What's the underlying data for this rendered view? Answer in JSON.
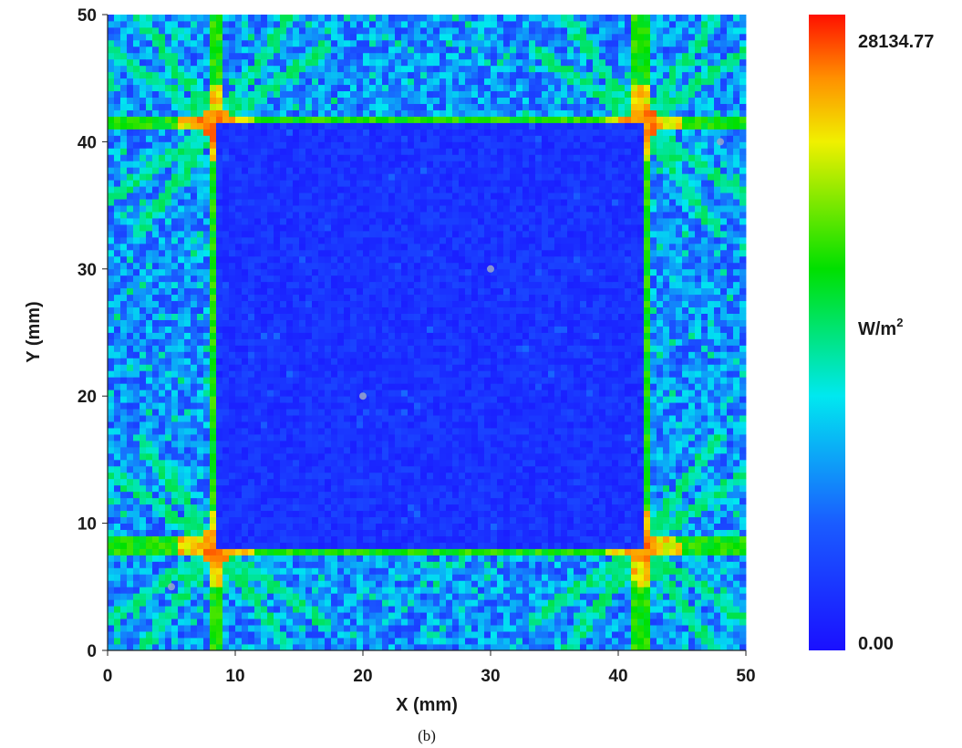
{
  "chart_data": {
    "type": "heatmap",
    "title": "",
    "xlabel": "X (mm)",
    "ylabel": "Y (mm)",
    "xlim": [
      0,
      50
    ],
    "ylim": [
      0,
      50
    ],
    "x_ticks": [
      "0",
      "10",
      "20",
      "30",
      "40",
      "50"
    ],
    "y_ticks": [
      "0",
      "10",
      "20",
      "30",
      "40",
      "50"
    ],
    "grid": 100,
    "colorbar": {
      "max_label": "28134.77",
      "min_label": "0.00",
      "unit_label": "W/m",
      "unit_superscript": "2",
      "min": 0.0,
      "max": 28134.77,
      "colormap": "jet",
      "placement": "right"
    },
    "regions": {
      "inner_square_x": [
        8.5,
        41.8
      ],
      "inner_square_y": [
        8.2,
        41.4
      ],
      "description_levels": {
        "inner_square": 0.1,
        "outer_frame": 0.3,
        "edge_lines": 0.55,
        "corner_hotspots": 0.95
      }
    },
    "markers": [
      {
        "x": 20,
        "y": 20
      },
      {
        "x": 30,
        "y": 30
      },
      {
        "x": 48,
        "y": 40
      },
      {
        "x": 5,
        "y": 5
      }
    ]
  },
  "caption": "(b)",
  "colors": {
    "low": "#1f1aff",
    "high": "#ff1a0a",
    "background": "#ffffff",
    "text": "#1a1a1a"
  }
}
